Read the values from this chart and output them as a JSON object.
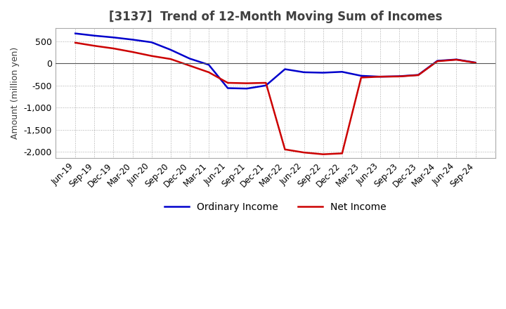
{
  "title": "[3137]  Trend of 12-Month Moving Sum of Incomes",
  "ylabel": "Amount (million yen)",
  "x_labels": [
    "Jun-19",
    "Sep-19",
    "Dec-19",
    "Mar-20",
    "Jun-20",
    "Sep-20",
    "Dec-20",
    "Mar-21",
    "Jun-21",
    "Sep-21",
    "Dec-21",
    "Mar-22",
    "Jun-22",
    "Sep-22",
    "Dec-22",
    "Mar-23",
    "Jun-23",
    "Sep-23",
    "Dec-23",
    "Mar-24",
    "Jun-24",
    "Sep-24"
  ],
  "ordinary_income": [
    680,
    630,
    590,
    540,
    480,
    310,
    110,
    -30,
    -560,
    -570,
    -500,
    -130,
    -200,
    -210,
    -190,
    -280,
    -300,
    -290,
    -260,
    60,
    90,
    20
  ],
  "net_income": [
    470,
    400,
    340,
    260,
    170,
    100,
    -50,
    -200,
    -440,
    -450,
    -440,
    -1950,
    -2020,
    -2060,
    -2040,
    -320,
    -300,
    -295,
    -265,
    50,
    85,
    15
  ],
  "ordinary_color": "#0000cc",
  "net_color": "#cc0000",
  "ylim": [
    -2150,
    800
  ],
  "yticks": [
    500,
    0,
    -500,
    -1000,
    -1500,
    -2000
  ],
  "background_color": "#ffffff",
  "plot_bg_color": "#ffffff",
  "grid_color": "#aaaaaa",
  "title_color": "#404040",
  "line_width": 1.8
}
